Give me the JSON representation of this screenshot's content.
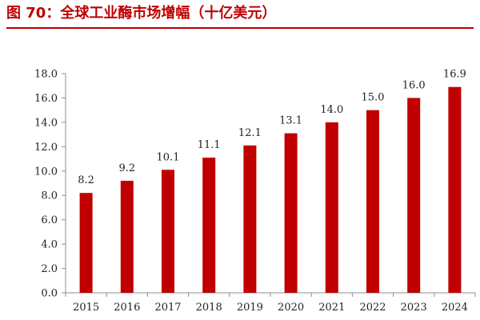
{
  "figure": {
    "title": "图 70：全球工业酶市场增幅（十亿美元）"
  },
  "colors": {
    "bar": "#c00000",
    "title": "#c00000",
    "axis": "#8c8c8c"
  },
  "chart_data": {
    "type": "bar",
    "title": "",
    "xlabel": "",
    "ylabel": "",
    "categories": [
      "2015",
      "2016",
      "2017",
      "2018",
      "2019",
      "2020",
      "2021",
      "2022",
      "2023",
      "2024"
    ],
    "series": [
      {
        "values": [
          8.2,
          9.2,
          10.1,
          11.1,
          12.1,
          13.1,
          14.0,
          15.0,
          16.0,
          16.9
        ]
      }
    ],
    "data_labels": [
      "8.2",
      "9.2",
      "10.1",
      "11.1",
      "12.1",
      "13.1",
      "14.0",
      "15.0",
      "16.0",
      "16.9"
    ],
    "ylim": [
      0,
      18
    ],
    "yticks": [
      "0.0",
      "2.0",
      "4.0",
      "6.0",
      "8.0",
      "10.0",
      "12.0",
      "14.0",
      "16.0",
      "18.0"
    ],
    "grid": false,
    "legend": "none"
  }
}
